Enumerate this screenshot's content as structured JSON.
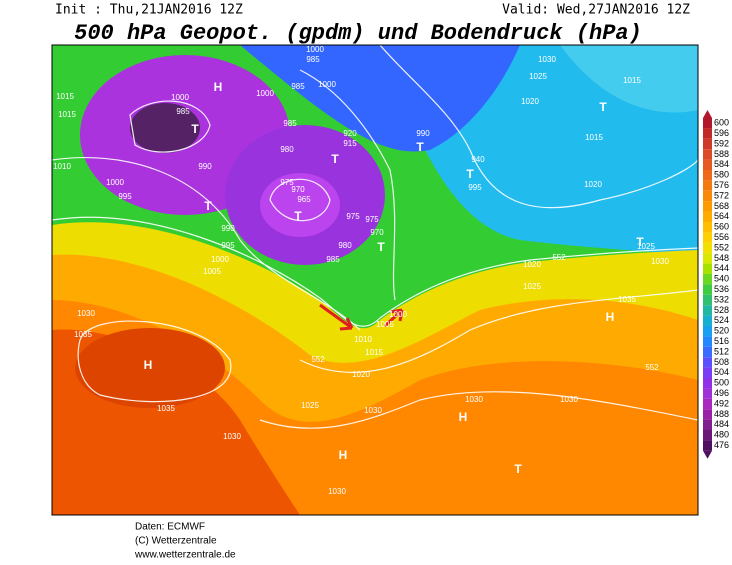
{
  "header": {
    "init": "Init : Thu,21JAN2016 12Z",
    "valid": "Valid: Wed,27JAN2016 12Z",
    "title": "500 hPa Geopot. (gpdm) und Bodendruck (hPa)"
  },
  "legend": {
    "labels": [
      600,
      596,
      592,
      588,
      584,
      580,
      576,
      572,
      568,
      564,
      560,
      556,
      552,
      548,
      544,
      540,
      536,
      532,
      528,
      524,
      520,
      516,
      512,
      508,
      504,
      500,
      496,
      492,
      488,
      484,
      480,
      476
    ]
  },
  "map": {
    "labels": [
      "1000",
      "985",
      "T",
      "H",
      "1000",
      "1000",
      "985",
      "985",
      "1000",
      "985",
      "980",
      "920",
      "915",
      "T",
      "975",
      "970",
      "965",
      "T",
      "975",
      "975",
      "970",
      "T",
      "980",
      "985",
      "990",
      "T",
      "940",
      "995",
      "T",
      "1025",
      "1030",
      "1020",
      "T",
      "1015",
      "1015",
      "1020",
      "T",
      "1025",
      "1015",
      "1015",
      "1010",
      "1000",
      "995",
      "T",
      "990",
      "990",
      "995",
      "1000",
      "1005",
      "1030",
      "1035",
      "H",
      "1035",
      "1030",
      "552",
      "1010",
      "1015",
      "1020",
      "1025",
      "1030",
      "1030",
      "H",
      "H",
      "1030",
      "T",
      "1030",
      "H",
      "1035",
      "1020",
      "1025",
      "1000",
      "1005",
      "552",
      "1030",
      "552"
    ]
  },
  "footer": {
    "source": "Daten: ECMWF",
    "copyright": "(C) Wetterzentrale",
    "url": "www.wetterzentrale.de"
  }
}
